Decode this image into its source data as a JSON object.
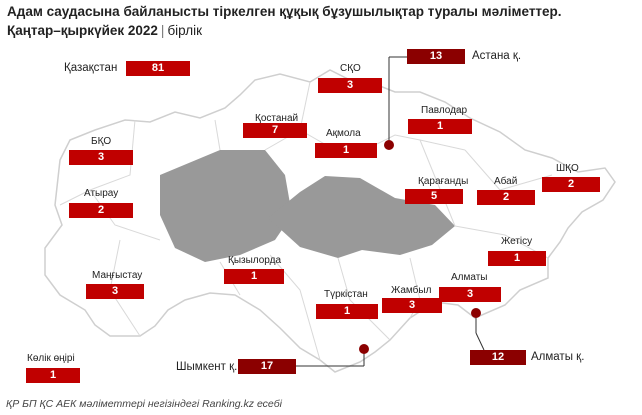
{
  "header": {
    "title": "Адам саудасына байланысты тіркелген құқық бұзушылықтар туралы мәліметтер.",
    "period": "Қаңтар–қыркүйек 2022",
    "separator": "|",
    "unit": "бірлік"
  },
  "colors": {
    "region_fill": "#ffffff",
    "highlight_fill": "#999999",
    "boundary": "#cfcfcf",
    "marker": "#c00000",
    "city_marker": "#8b0000"
  },
  "total": {
    "label": "Қазақстан",
    "value": "81"
  },
  "regions": [
    {
      "id": "sko",
      "label": "СҚО",
      "value": "3"
    },
    {
      "id": "astana",
      "label": "Астана қ.",
      "value": "13"
    },
    {
      "id": "pavlodar",
      "label": "Павлодар",
      "value": "1"
    },
    {
      "id": "kostanay",
      "label": "Қостанай",
      "value": "7"
    },
    {
      "id": "akmola",
      "label": "Ақмола",
      "value": "1"
    },
    {
      "id": "bko",
      "label": "БҚО",
      "value": "3"
    },
    {
      "id": "shko",
      "label": "ШҚО",
      "value": "2"
    },
    {
      "id": "atyrau",
      "label": "Атырау",
      "value": "2"
    },
    {
      "id": "karagandy",
      "label": "Қарағанды",
      "value": "5"
    },
    {
      "id": "abai",
      "label": "Абай",
      "value": "2"
    },
    {
      "id": "zhetisu",
      "label": "Жетісу",
      "value": "1"
    },
    {
      "id": "mangystau",
      "label": "Маңғыстау",
      "value": "3"
    },
    {
      "id": "kyzylorda",
      "label": "Қызылорда",
      "value": "1"
    },
    {
      "id": "almaty",
      "label": "Алматы",
      "value": "3"
    },
    {
      "id": "turkistan",
      "label": "Түркістан",
      "value": "1"
    },
    {
      "id": "zhambyl",
      "label": "Жамбыл",
      "value": "3"
    },
    {
      "id": "almaty_city",
      "label": "Алматы қ.",
      "value": "12"
    },
    {
      "id": "shymkent",
      "label": "Шымкент қ.",
      "value": "17"
    },
    {
      "id": "transport",
      "label": "Көлік өңірі",
      "value": "1"
    }
  ],
  "source": "ҚР БП ҚС АЕК мәліметтері негізіндегі Ranking.kz есебі"
}
